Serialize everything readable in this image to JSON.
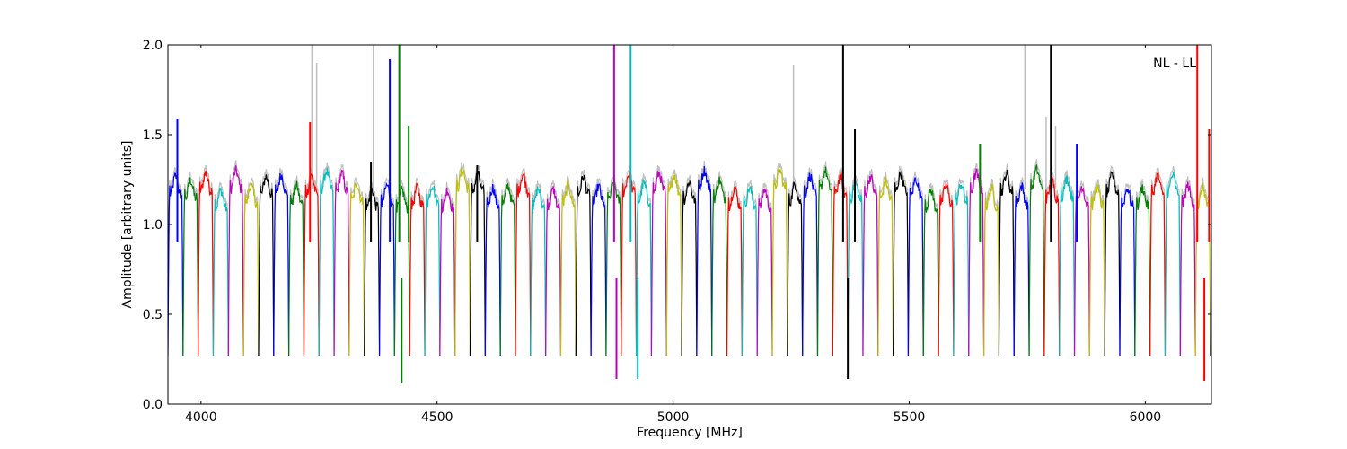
{
  "chart_data": {
    "type": "line",
    "title": "",
    "annotation": "NL - LL",
    "xlabel": "Frequency [MHz]",
    "ylabel": "Amplitude [arbitrary units]",
    "xlim": [
      3930,
      6140
    ],
    "ylim": [
      0.0,
      2.0
    ],
    "xticks": [
      4000,
      4500,
      5000,
      5500,
      6000
    ],
    "yticks": [
      0.0,
      0.5,
      1.0,
      1.5,
      2.0
    ],
    "xtick_labels": [
      "4000",
      "4500",
      "5000",
      "5500",
      "6000"
    ],
    "ytick_labels": [
      "0.0",
      "0.5",
      "1.0",
      "1.5",
      "2.0"
    ],
    "grid": false,
    "background_color": "#bfbfbf",
    "palette": [
      "#0000ff",
      "#008000",
      "#ff0000",
      "#00bfbf",
      "#bf00bf",
      "#bfbf00",
      "#000000"
    ],
    "subband": {
      "start": 3930,
      "width": 32,
      "plateau": 1.2,
      "floor": 0.27
    },
    "spikes": [
      {
        "x": 3950,
        "y": 1.59,
        "color": "#0000ff"
      },
      {
        "x": 4231,
        "y": 1.57,
        "color": "#ff0000"
      },
      {
        "x": 4360,
        "y": 1.35,
        "color": "#000000"
      },
      {
        "x": 4400,
        "y": 1.92,
        "color": "#0000ff"
      },
      {
        "x": 4420,
        "y": 2.0,
        "color": "#008000"
      },
      {
        "x": 4425,
        "y": 0.12,
        "color": "#008000"
      },
      {
        "x": 4440,
        "y": 1.55,
        "color": "#008000"
      },
      {
        "x": 4585,
        "y": 1.33,
        "color": "#000000"
      },
      {
        "x": 4875,
        "y": 2.0,
        "color": "#bf00bf"
      },
      {
        "x": 4880,
        "y": 0.14,
        "color": "#bf00bf"
      },
      {
        "x": 4910,
        "y": 2.0,
        "color": "#00bfbf"
      },
      {
        "x": 4925,
        "y": 0.14,
        "color": "#00bfbf"
      },
      {
        "x": 5360,
        "y": 2.0,
        "color": "#000000"
      },
      {
        "x": 5370,
        "y": 0.14,
        "color": "#000000"
      },
      {
        "x": 5385,
        "y": 1.53,
        "color": "#000000"
      },
      {
        "x": 5650,
        "y": 1.45,
        "color": "#008000"
      },
      {
        "x": 5800,
        "y": 2.0,
        "color": "#000000"
      },
      {
        "x": 5855,
        "y": 1.45,
        "color": "#0000ff"
      },
      {
        "x": 6110,
        "y": 2.0,
        "color": "#ff0000"
      },
      {
        "x": 6125,
        "y": 0.13,
        "color": "#ff0000"
      },
      {
        "x": 6135,
        "y": 1.53,
        "color": "#ff0000"
      }
    ],
    "background_spikes": [
      {
        "x": 4235,
        "y": 2.0
      },
      {
        "x": 4245,
        "y": 1.9
      },
      {
        "x": 4365,
        "y": 2.0
      },
      {
        "x": 5255,
        "y": 1.89
      },
      {
        "x": 5745,
        "y": 2.0
      },
      {
        "x": 5790,
        "y": 1.6
      },
      {
        "x": 5810,
        "y": 1.55
      }
    ]
  }
}
